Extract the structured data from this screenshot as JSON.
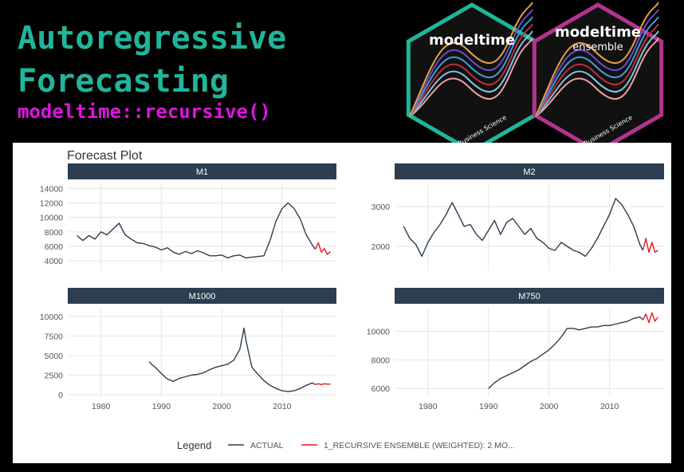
{
  "header": {
    "title_line1": "Autoregressive",
    "title_line2": "Forecasting",
    "subtitle": "modeltime::recursive()"
  },
  "logos": [
    {
      "name": "modeltime",
      "subname": "",
      "footer": "Business Science",
      "border": "#1fb69a"
    },
    {
      "name": "modeltime",
      "subname": "ensemble",
      "footer": "Business Science",
      "border": "#b3338f"
    }
  ],
  "logo_wave_colors": [
    "#f0a0a0",
    "#7ec8e8",
    "#c02d3a",
    "#3da0d8",
    "#6a4cc8",
    "#e8a040"
  ],
  "colors": {
    "actual": "#2c3e50",
    "forecast": "#e31a1c",
    "strip": "#2c3e50",
    "grid": "#e6e6e6"
  },
  "chart_data": {
    "type": "line",
    "title": "Forecast Plot",
    "legend": {
      "title": "Legend",
      "position": "bottom",
      "entries": [
        "ACTUAL",
        "1_RECURSIVE ENSEMBLE (WEIGHTED): 2 MO..."
      ]
    },
    "grid": true,
    "x_ticks": [
      "1980",
      "1990",
      "2000",
      "2010"
    ],
    "xlim": [
      1974.5,
      2019
    ],
    "panels": [
      {
        "label": "M1",
        "ylim": [
          2700,
          14800
        ],
        "y_ticks": [
          4000,
          6000,
          8000,
          10000,
          12000,
          14000
        ],
        "y_tick_labels": [
          "4000",
          "6000",
          "8000",
          "10000",
          "12000",
          "14000"
        ],
        "actual": [
          [
            1976,
            7500
          ],
          [
            1977,
            6800
          ],
          [
            1978,
            7500
          ],
          [
            1979,
            7000
          ],
          [
            1980,
            8000
          ],
          [
            1981,
            7600
          ],
          [
            1982,
            8400
          ],
          [
            1983,
            9200
          ],
          [
            1984,
            7600
          ],
          [
            1985,
            7000
          ],
          [
            1986,
            6500
          ],
          [
            1987,
            6400
          ],
          [
            1988,
            6100
          ],
          [
            1989,
            5900
          ],
          [
            1990,
            5500
          ],
          [
            1991,
            5800
          ],
          [
            1992,
            5200
          ],
          [
            1993,
            4900
          ],
          [
            1994,
            5300
          ],
          [
            1995,
            5000
          ],
          [
            1996,
            5400
          ],
          [
            1997,
            5100
          ],
          [
            1998,
            4700
          ],
          [
            1999,
            4700
          ],
          [
            2000,
            4800
          ],
          [
            2001,
            4400
          ],
          [
            2002,
            4700
          ],
          [
            2003,
            4800
          ],
          [
            2004,
            4400
          ],
          [
            2005,
            4500
          ],
          [
            2006,
            4600
          ],
          [
            2007,
            4700
          ],
          [
            2008,
            6800
          ],
          [
            2009,
            9500
          ],
          [
            2010,
            11200
          ],
          [
            2011,
            12000
          ],
          [
            2012,
            11200
          ],
          [
            2013,
            9800
          ],
          [
            2014,
            7600
          ],
          [
            2015,
            6200
          ],
          [
            2015.5,
            5600
          ]
        ],
        "forecast": [
          [
            2015.5,
            5600
          ],
          [
            2016,
            6500
          ],
          [
            2016.5,
            5200
          ],
          [
            2017,
            5700
          ],
          [
            2017.5,
            4900
          ],
          [
            2018,
            5300
          ]
        ]
      },
      {
        "label": "M2",
        "ylim": [
          1400,
          3600
        ],
        "y_ticks": [
          2000,
          3000
        ],
        "y_tick_labels": [
          "2000",
          "3000"
        ],
        "actual": [
          [
            1976,
            2500
          ],
          [
            1977,
            2200
          ],
          [
            1978,
            2050
          ],
          [
            1979,
            1750
          ],
          [
            1980,
            2100
          ],
          [
            1981,
            2350
          ],
          [
            1982,
            2550
          ],
          [
            1983,
            2800
          ],
          [
            1984,
            3100
          ],
          [
            1985,
            2800
          ],
          [
            1986,
            2500
          ],
          [
            1987,
            2550
          ],
          [
            1988,
            2300
          ],
          [
            1989,
            2150
          ],
          [
            1990,
            2400
          ],
          [
            1991,
            2650
          ],
          [
            1992,
            2300
          ],
          [
            1993,
            2600
          ],
          [
            1994,
            2700
          ],
          [
            1995,
            2500
          ],
          [
            1996,
            2300
          ],
          [
            1997,
            2450
          ],
          [
            1998,
            2200
          ],
          [
            1999,
            2100
          ],
          [
            2000,
            1950
          ],
          [
            2001,
            1900
          ],
          [
            2002,
            2100
          ],
          [
            2003,
            2000
          ],
          [
            2004,
            1900
          ],
          [
            2005,
            1850
          ],
          [
            2006,
            1750
          ],
          [
            2007,
            1950
          ],
          [
            2008,
            2200
          ],
          [
            2009,
            2500
          ],
          [
            2010,
            2800
          ],
          [
            2011,
            3200
          ],
          [
            2012,
            3050
          ],
          [
            2013,
            2800
          ],
          [
            2014,
            2500
          ],
          [
            2015,
            2050
          ],
          [
            2015.5,
            1900
          ]
        ],
        "forecast": [
          [
            2015.5,
            1900
          ],
          [
            2016,
            2200
          ],
          [
            2016.5,
            1850
          ],
          [
            2017,
            2100
          ],
          [
            2017.5,
            1850
          ],
          [
            2018,
            1900
          ]
        ]
      },
      {
        "label": "M1000",
        "ylim": [
          -300,
          11200
        ],
        "y_ticks": [
          0,
          2500,
          5000,
          7500,
          10000
        ],
        "y_tick_labels": [
          "0",
          "2500",
          "5000",
          "7500",
          "10000"
        ],
        "actual": [
          [
            1988,
            4200
          ],
          [
            1988.5,
            3800
          ],
          [
            1989,
            3500
          ],
          [
            1990,
            2700
          ],
          [
            1991,
            2000
          ],
          [
            1992,
            1700
          ],
          [
            1993,
            2100
          ],
          [
            1994,
            2300
          ],
          [
            1995,
            2500
          ],
          [
            1996,
            2600
          ],
          [
            1997,
            2800
          ],
          [
            1998,
            3200
          ],
          [
            1999,
            3500
          ],
          [
            2000,
            3700
          ],
          [
            2001,
            3900
          ],
          [
            2002,
            4400
          ],
          [
            2003,
            5800
          ],
          [
            2003.7,
            8500
          ],
          [
            2004,
            7000
          ],
          [
            2005,
            3500
          ],
          [
            2006,
            2600
          ],
          [
            2007,
            1800
          ],
          [
            2008,
            1200
          ],
          [
            2009,
            800
          ],
          [
            2010,
            500
          ],
          [
            2011,
            400
          ],
          [
            2012,
            500
          ],
          [
            2013,
            800
          ],
          [
            2014,
            1200
          ],
          [
            2015,
            1500
          ],
          [
            2015.5,
            1300
          ]
        ],
        "forecast": [
          [
            2015.5,
            1300
          ],
          [
            2016,
            1400
          ],
          [
            2016.5,
            1300
          ],
          [
            2017,
            1400
          ],
          [
            2017.5,
            1350
          ],
          [
            2018,
            1350
          ]
        ]
      },
      {
        "label": "M750",
        "ylim": [
          5400,
          11700
        ],
        "y_ticks": [
          6000,
          8000,
          10000
        ],
        "y_tick_labels": [
          "6000",
          "8000",
          "10000"
        ],
        "actual": [
          [
            1990,
            6000
          ],
          [
            1991,
            6400
          ],
          [
            1992,
            6700
          ],
          [
            1993,
            6900
          ],
          [
            1994,
            7100
          ],
          [
            1995,
            7300
          ],
          [
            1996,
            7600
          ],
          [
            1997,
            7900
          ],
          [
            1998,
            8100
          ],
          [
            1999,
            8400
          ],
          [
            2000,
            8700
          ],
          [
            2001,
            9100
          ],
          [
            2002,
            9600
          ],
          [
            2003,
            10200
          ],
          [
            2004,
            10200
          ],
          [
            2005,
            10100
          ],
          [
            2006,
            10200
          ],
          [
            2007,
            10300
          ],
          [
            2008,
            10300
          ],
          [
            2009,
            10400
          ],
          [
            2010,
            10400
          ],
          [
            2011,
            10500
          ],
          [
            2012,
            10600
          ],
          [
            2013,
            10700
          ],
          [
            2014,
            10900
          ],
          [
            2015,
            11000
          ],
          [
            2015.5,
            10800
          ]
        ],
        "forecast": [
          [
            2015.5,
            10800
          ],
          [
            2016,
            11200
          ],
          [
            2016.5,
            10600
          ],
          [
            2017,
            11300
          ],
          [
            2017.5,
            10700
          ],
          [
            2018,
            11000
          ]
        ]
      }
    ]
  }
}
